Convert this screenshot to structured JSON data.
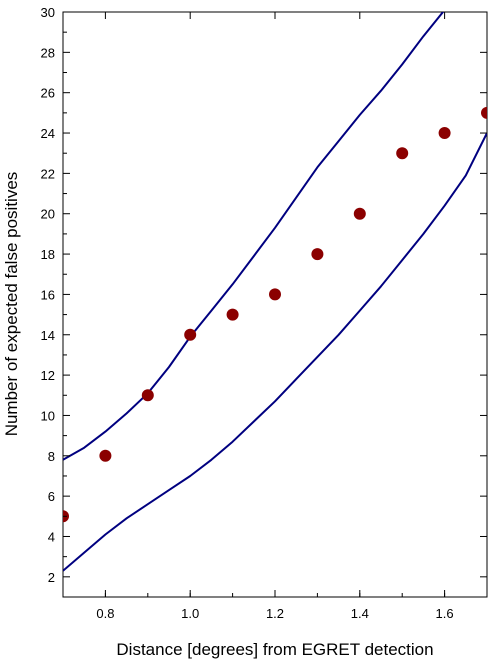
{
  "chart_data": {
    "type": "scatter",
    "title": "",
    "xlabel": "Distance [degrees] from EGRET detection",
    "ylabel": "Number of expected false positives",
    "xlim": [
      0.7,
      1.7
    ],
    "ylim": [
      1,
      30
    ],
    "x_ticks": [
      0.8,
      1.0,
      1.2,
      1.4,
      1.6
    ],
    "x_tick_labels": [
      "0.8",
      "1.0",
      "1.2",
      "1.4",
      "1.6"
    ],
    "y_ticks": [
      2,
      4,
      6,
      8,
      10,
      12,
      14,
      16,
      18,
      20,
      22,
      24,
      26,
      28,
      30
    ],
    "y_tick_labels": [
      "2",
      "4",
      "6",
      "8",
      "10",
      "12",
      "14",
      "16",
      "18",
      "20",
      "22",
      "24",
      "26",
      "28",
      "30"
    ],
    "grid": false,
    "legend": "none",
    "series": [
      {
        "kind": "points",
        "color": "#8b0000",
        "x": [
          0.7,
          0.8,
          0.9,
          1.0,
          1.1,
          1.2,
          1.3,
          1.4,
          1.5,
          1.6,
          1.7
        ],
        "y": [
          5,
          8,
          11,
          14,
          15,
          16,
          18,
          20,
          23,
          24,
          25
        ]
      },
      {
        "kind": "line",
        "color": "#000080",
        "x": [
          0.7,
          0.75,
          0.8,
          0.85,
          0.9,
          0.95,
          1.0,
          1.05,
          1.1,
          1.15,
          1.2,
          1.25,
          1.3,
          1.35,
          1.4,
          1.45,
          1.5,
          1.55,
          1.6
        ],
        "y": [
          7.8,
          8.4,
          9.2,
          10.1,
          11.1,
          12.4,
          13.9,
          15.2,
          16.5,
          17.9,
          19.3,
          20.8,
          22.3,
          23.6,
          24.9,
          26.1,
          27.4,
          28.8,
          30.1
        ]
      },
      {
        "kind": "line",
        "color": "#000080",
        "x": [
          0.7,
          0.75,
          0.8,
          0.85,
          0.9,
          0.95,
          1.0,
          1.05,
          1.1,
          1.15,
          1.2,
          1.25,
          1.3,
          1.35,
          1.4,
          1.45,
          1.5,
          1.55,
          1.6,
          1.65,
          1.7
        ],
        "y": [
          2.3,
          3.2,
          4.1,
          4.9,
          5.6,
          6.3,
          7.0,
          7.8,
          8.7,
          9.7,
          10.7,
          11.8,
          12.9,
          14.0,
          15.2,
          16.4,
          17.7,
          19.0,
          20.4,
          21.9,
          24.0
        ]
      }
    ]
  }
}
